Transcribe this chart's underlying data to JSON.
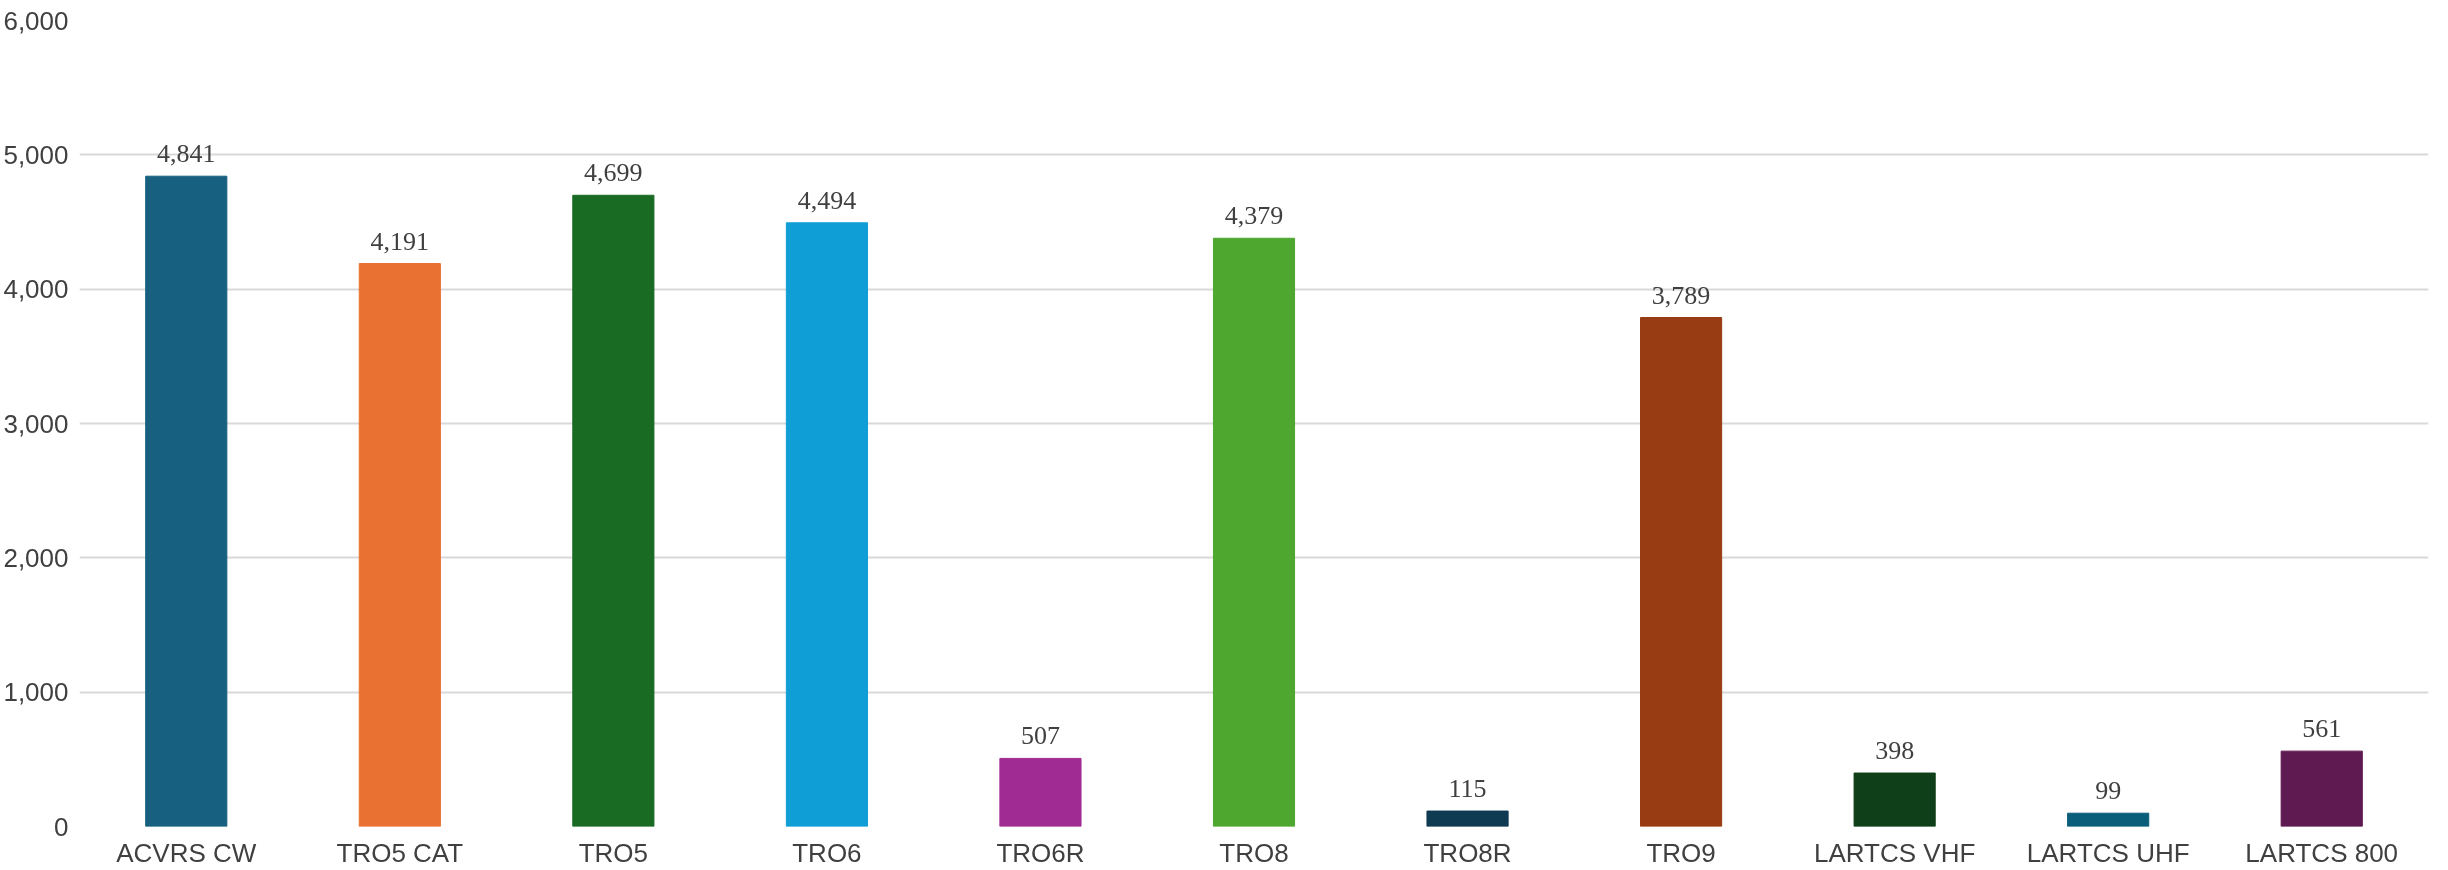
{
  "chart_data": {
    "type": "bar",
    "categories": [
      "ACVRS CW",
      "TRO5 CAT",
      "TRO5",
      "TRO6",
      "TRO6R",
      "TRO8",
      "TRO8R",
      "TRO9",
      "LARTCS VHF",
      "LARTCS UHF",
      "LARTCS 800"
    ],
    "values": [
      4841,
      4191,
      4699,
      4494,
      507,
      4379,
      115,
      3789,
      398,
      99,
      561
    ],
    "colors": [
      "#17607f",
      "#e97132",
      "#196b24",
      "#0f9ed5",
      "#a02b93",
      "#4ea72e",
      "#0e3a52",
      "#983c13",
      "#0f3f18",
      "#0b5e7a",
      "#601a52"
    ],
    "value_labels": [
      "4,841",
      "4,191",
      "4,699",
      "4,494",
      "507",
      "4,379",
      "115",
      "3,789",
      "398",
      "99",
      "561"
    ],
    "ylim": [
      0,
      6000
    ],
    "yticks": [
      {
        "value": 0,
        "label": "0"
      },
      {
        "value": 1000,
        "label": "1,000"
      },
      {
        "value": 2000,
        "label": "2,000"
      },
      {
        "value": 3000,
        "label": "3,000"
      },
      {
        "value": 4000,
        "label": "4,000"
      },
      {
        "value": 5000,
        "label": "5,000"
      },
      {
        "value": 6000,
        "label": "6,000"
      }
    ],
    "grid": "y"
  }
}
